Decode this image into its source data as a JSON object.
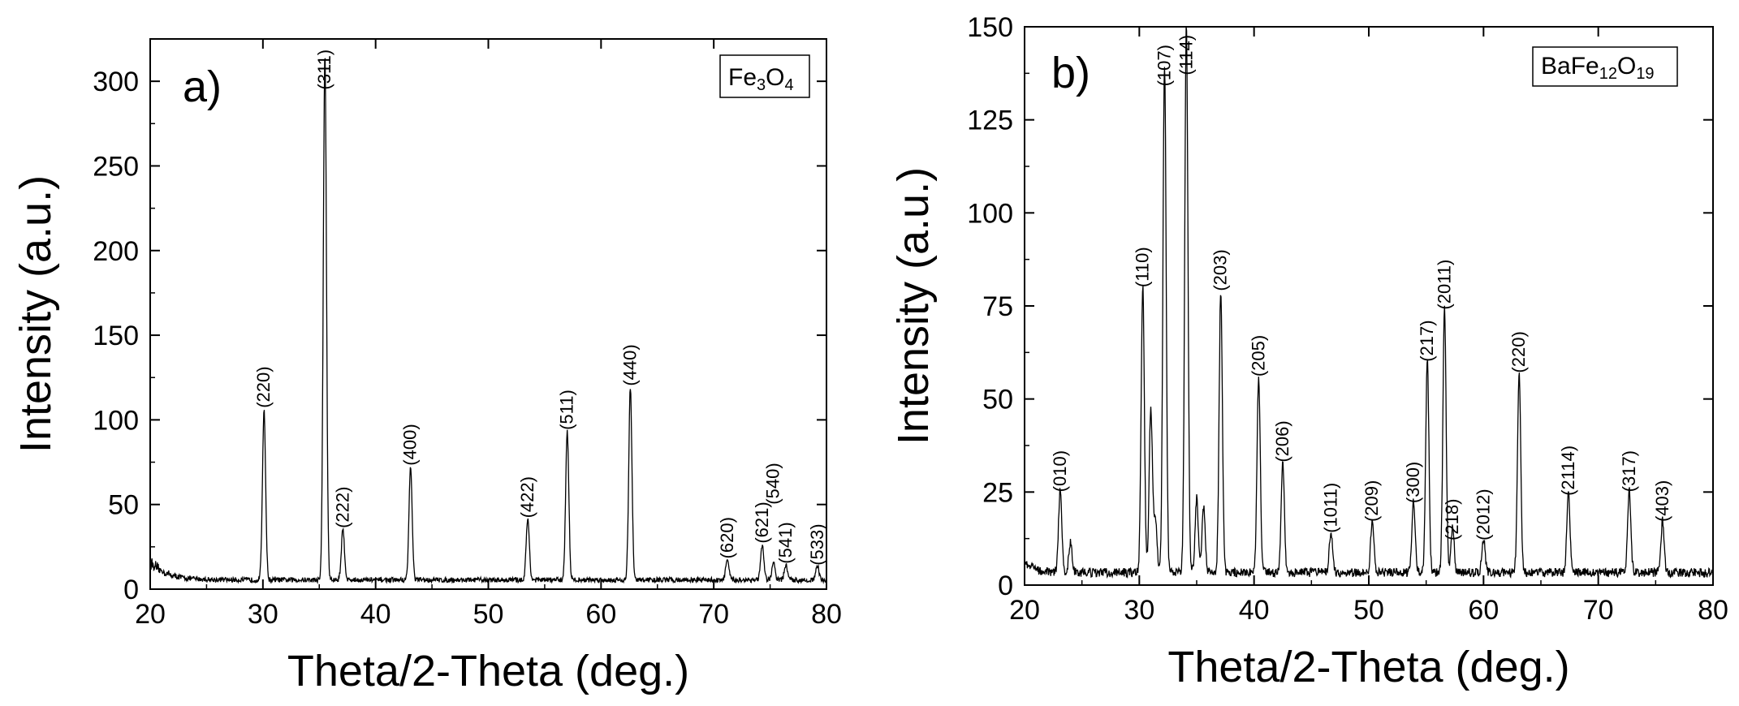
{
  "chart_data": [
    {
      "type": "line",
      "panel_label": "a)",
      "legend": {
        "base": "Fe",
        "sub1": "3",
        "mid": "O",
        "sub2": "4"
      },
      "xlabel": "Theta/2-Theta (deg.)",
      "ylabel": "Intensity (a.u.)",
      "xlim": [
        20,
        80
      ],
      "ylim": [
        0,
        325
      ],
      "xticks": [
        20,
        30,
        40,
        50,
        60,
        70,
        80
      ],
      "yticks": [
        0,
        50,
        100,
        150,
        200,
        250,
        300
      ],
      "baseline": 5,
      "noise": 3,
      "baseline_start": {
        "x": 20,
        "y": 11,
        "decay": 1.4
      },
      "peaks": [
        {
          "x": 30.1,
          "h": 100,
          "label": "(220)",
          "label_y": 107
        },
        {
          "x": 35.5,
          "h": 311,
          "label": "(311)",
          "label_y": 295
        },
        {
          "x": 37.1,
          "h": 30,
          "label": "(222)",
          "label_y": 36
        },
        {
          "x": 43.1,
          "h": 67,
          "label": "(400)",
          "label_y": 73
        },
        {
          "x": 53.5,
          "h": 36,
          "label": "(422)",
          "label_y": 42
        },
        {
          "x": 57.0,
          "h": 88,
          "label": "(511)",
          "label_y": 94
        },
        {
          "x": 62.6,
          "h": 114,
          "label": "(440)",
          "label_y": 120
        },
        {
          "x": 71.2,
          "h": 12,
          "label": "(620)",
          "label_y": 18
        },
        {
          "x": 74.3,
          "h": 20,
          "label": "(621)",
          "label_y": 27
        },
        {
          "x": 75.3,
          "h": 10,
          "label": "(540)",
          "label_y": 50
        },
        {
          "x": 76.4,
          "h": 9,
          "label": "(541)",
          "label_y": 15
        },
        {
          "x": 79.2,
          "h": 8,
          "label": "(533)",
          "label_y": 14
        }
      ]
    },
    {
      "type": "line",
      "panel_label": "b)",
      "legend": {
        "base": "BaFe",
        "sub1": "12",
        "mid": "O",
        "sub2": "19"
      },
      "xlabel": "Theta/2-Theta (deg.)",
      "ylabel": "Intensity (a.u.)",
      "xlim": [
        20,
        80
      ],
      "ylim": [
        0,
        150
      ],
      "xticks": [
        20,
        30,
        40,
        50,
        60,
        70,
        80
      ],
      "yticks": [
        0,
        25,
        50,
        75,
        100,
        125,
        150
      ],
      "baseline": 3,
      "noise": 2.4,
      "baseline_start": {
        "x": 20,
        "y": 3,
        "decay": 1.0
      },
      "peaks": [
        {
          "x": 23.1,
          "h": 22,
          "label": "(010)",
          "label_y": 25
        },
        {
          "x": 24.0,
          "h": 8
        },
        {
          "x": 30.3,
          "h": 77,
          "label": "(110)",
          "label_y": 80
        },
        {
          "x": 31.0,
          "h": 44
        },
        {
          "x": 31.4,
          "h": 15
        },
        {
          "x": 32.2,
          "h": 137,
          "label": "(107)",
          "label_y": 134
        },
        {
          "x": 34.1,
          "h": 148,
          "label": "(114)",
          "label_y": 137
        },
        {
          "x": 35.0,
          "h": 20
        },
        {
          "x": 35.6,
          "h": 18
        },
        {
          "x": 37.1,
          "h": 76,
          "label": "(203)",
          "label_y": 79
        },
        {
          "x": 40.4,
          "h": 53,
          "label": "(205)",
          "label_y": 56
        },
        {
          "x": 42.5,
          "h": 30,
          "label": "(206)",
          "label_y": 33
        },
        {
          "x": 46.7,
          "h": 11,
          "label": "(1011)",
          "label_y": 14
        },
        {
          "x": 50.3,
          "h": 14,
          "label": "(209)",
          "label_y": 17
        },
        {
          "x": 53.9,
          "h": 19,
          "label": "(300)",
          "label_y": 22
        },
        {
          "x": 55.1,
          "h": 57,
          "label": "(217)",
          "label_y": 60
        },
        {
          "x": 56.6,
          "h": 71,
          "label": "(2011)",
          "label_y": 74
        },
        {
          "x": 57.3,
          "h": 12,
          "label": "(218)",
          "label_y": 12
        },
        {
          "x": 60.0,
          "h": 9,
          "label": "(2012)",
          "label_y": 12
        },
        {
          "x": 63.1,
          "h": 54,
          "label": "(220)",
          "label_y": 57
        },
        {
          "x": 67.4,
          "h": 21,
          "label": "(2114)",
          "label_y": 24
        },
        {
          "x": 72.7,
          "h": 22,
          "label": "(317)",
          "label_y": 25
        },
        {
          "x": 75.6,
          "h": 14,
          "label": "(403)",
          "label_y": 17
        }
      ]
    }
  ]
}
